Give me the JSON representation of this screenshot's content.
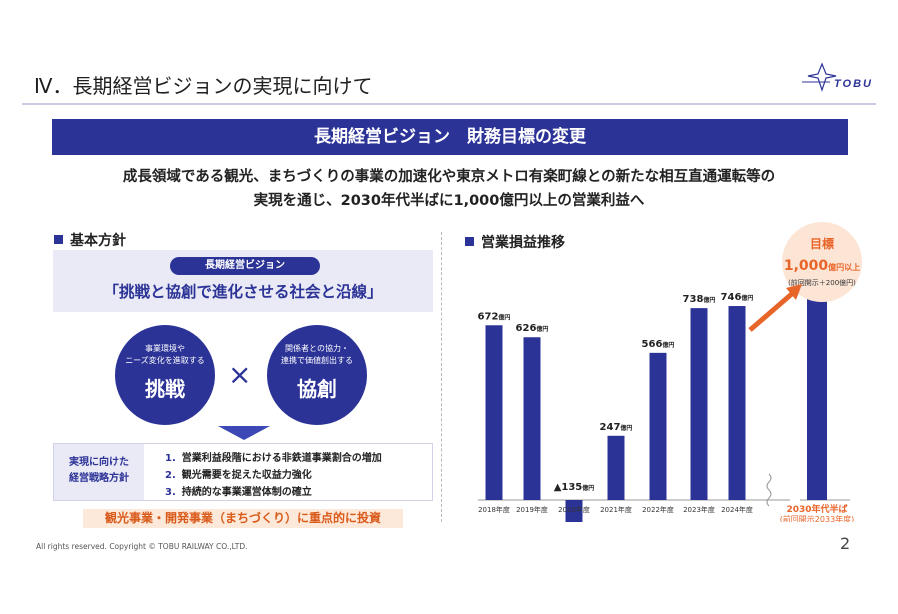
{
  "header": {
    "title": "Ⅳ．長期経営ビジョンの実現に向けて",
    "logo_text": "TOBU"
  },
  "banner": {
    "title": "長期経営ビジョン　財務目標の変更"
  },
  "lead": {
    "line1": "成長領域である観光、まちづくりの事業の加速化や東京メトロ有楽町線との新たな相互直通運転等の",
    "line2": "実現を通じ、2030年代半ばに1,000億円以上の営業利益へ"
  },
  "basic_policy": {
    "heading": "基本方針",
    "vision_label": "長期経営ビジョン",
    "vision_slogan": "「挑戦と協創で進化させる社会と沿線」",
    "left_circle": {
      "line1": "事業環境や",
      "line2": "ニーズ変化を進取する",
      "main": "挑戦"
    },
    "times_symbol": "×",
    "right_circle": {
      "line1": "関係者との協力・",
      "line2": "連携で価値創出する",
      "main": "協創"
    },
    "strategy_label_line1": "実現に向けた",
    "strategy_label_line2": "経営戦略方針",
    "strategy_items": [
      {
        "num": "1.",
        "text": "営業利益段階における非鉄道事業割合の増加"
      },
      {
        "num": "2.",
        "text": "観光需要を捉えた収益力強化"
      },
      {
        "num": "3.",
        "text": "持続的な事業運営体制の確立"
      }
    ],
    "focus_text": "観光事業・開発事業（まちづくり）に重点的に投資"
  },
  "profit_section": {
    "heading": "営業損益推移"
  },
  "chart_data": {
    "type": "bar",
    "categories": [
      "2018年度",
      "2019年度",
      "2020年度",
      "2021年度",
      "2022年度",
      "2023年度",
      "2024年度",
      "2030年代半ば"
    ],
    "values": [
      672,
      626,
      -135,
      247,
      566,
      738,
      746,
      1000
    ],
    "value_labels": [
      "672",
      "626",
      "▲135",
      "247",
      "566",
      "738",
      "746",
      ""
    ],
    "value_unit": "億円",
    "target": {
      "title": "目標",
      "value": "1,000",
      "unit": "億円以上",
      "note": "(前回開示＋200億円)"
    },
    "last_category_note": "(前回開示2033年度)",
    "bar_color": "#2c3397",
    "target_color": "#e8652a",
    "title": "",
    "xlabel": "",
    "ylabel": ""
  },
  "footer": {
    "copyright": "All rights reserved. Copyright © TOBU RAILWAY CO.,LTD.",
    "page_number": "2"
  }
}
